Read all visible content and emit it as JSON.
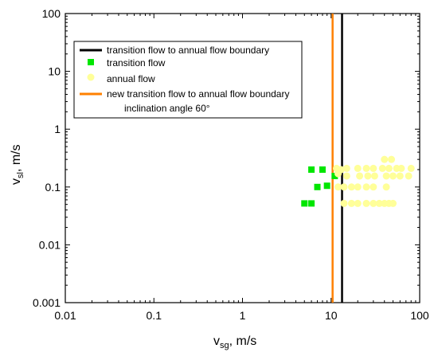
{
  "chart_data": {
    "type": "scatter",
    "xscale": "log",
    "yscale": "log",
    "xlim": [
      0.01,
      100
    ],
    "ylim": [
      0.001,
      100
    ],
    "x_ticks": [
      "0.01",
      "0.1",
      "1",
      "10",
      "100"
    ],
    "y_ticks": [
      "0.001",
      "0.01",
      "0.1",
      "1",
      "10",
      "100"
    ],
    "xlabel": {
      "main": "v",
      "sub": "sg",
      "unit": ",  m/s"
    },
    "ylabel": {
      "main": "v",
      "sub": "sl",
      "unit": ",  m/s"
    },
    "grid": false,
    "legend_position": "top-left",
    "legend": [
      {
        "label": "transition flow to annual flow boundary",
        "marker": "line",
        "color": "#000000"
      },
      {
        "label": "transition flow",
        "marker": "square",
        "color": "#00e600"
      },
      {
        "label": "annual flow",
        "marker": "circle",
        "color": "#ffff99"
      },
      {
        "label": "new transition flow to annual flow boundary",
        "marker": "line",
        "color": "#ff8000"
      }
    ],
    "annotation": "inclination angle 60°",
    "vertical_lines": [
      {
        "name": "transition flow to annual flow boundary",
        "x": 13.3,
        "color": "#000000"
      },
      {
        "name": "new transition flow to annual flow boundary",
        "x": 10.4,
        "color": "#ff8000"
      }
    ],
    "series": [
      {
        "name": "transition flow",
        "marker": "square",
        "color": "#00e600",
        "points": [
          {
            "x": 5.0,
            "y": 0.052
          },
          {
            "x": 6.0,
            "y": 0.052
          },
          {
            "x": 7.0,
            "y": 0.1
          },
          {
            "x": 9.0,
            "y": 0.105
          },
          {
            "x": 6.0,
            "y": 0.2
          },
          {
            "x": 8.0,
            "y": 0.2
          },
          {
            "x": 11.0,
            "y": 0.155
          }
        ]
      },
      {
        "name": "annual flow",
        "marker": "circle",
        "color": "#ffff99",
        "points": [
          {
            "x": 11.5,
            "y": 0.21
          },
          {
            "x": 13.0,
            "y": 0.2
          },
          {
            "x": 15.0,
            "y": 0.21
          },
          {
            "x": 20.0,
            "y": 0.21
          },
          {
            "x": 25.0,
            "y": 0.21
          },
          {
            "x": 30.0,
            "y": 0.21
          },
          {
            "x": 38.0,
            "y": 0.21
          },
          {
            "x": 45.0,
            "y": 0.21
          },
          {
            "x": 55.0,
            "y": 0.21
          },
          {
            "x": 62.0,
            "y": 0.21
          },
          {
            "x": 80.0,
            "y": 0.21
          },
          {
            "x": 12.0,
            "y": 0.17
          },
          {
            "x": 15.0,
            "y": 0.155
          },
          {
            "x": 21.0,
            "y": 0.155
          },
          {
            "x": 26.0,
            "y": 0.155
          },
          {
            "x": 31.0,
            "y": 0.155
          },
          {
            "x": 42.0,
            "y": 0.155
          },
          {
            "x": 50.0,
            "y": 0.155
          },
          {
            "x": 60.0,
            "y": 0.155
          },
          {
            "x": 75.0,
            "y": 0.155
          },
          {
            "x": 12.0,
            "y": 0.1
          },
          {
            "x": 14.0,
            "y": 0.1
          },
          {
            "x": 17.0,
            "y": 0.1
          },
          {
            "x": 20.0,
            "y": 0.1
          },
          {
            "x": 25.0,
            "y": 0.1
          },
          {
            "x": 30.0,
            "y": 0.1
          },
          {
            "x": 42.0,
            "y": 0.1
          },
          {
            "x": 14.0,
            "y": 0.052
          },
          {
            "x": 17.0,
            "y": 0.052
          },
          {
            "x": 20.0,
            "y": 0.052
          },
          {
            "x": 25.0,
            "y": 0.052
          },
          {
            "x": 30.0,
            "y": 0.052
          },
          {
            "x": 35.0,
            "y": 0.052
          },
          {
            "x": 40.0,
            "y": 0.052
          },
          {
            "x": 45.0,
            "y": 0.052
          },
          {
            "x": 50.0,
            "y": 0.052
          },
          {
            "x": 40.0,
            "y": 0.3
          },
          {
            "x": 48.0,
            "y": 0.3
          }
        ]
      }
    ]
  }
}
